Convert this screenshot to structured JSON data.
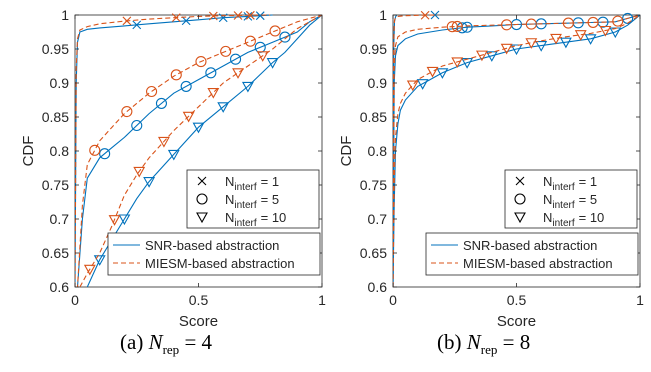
{
  "chart_data": [
    {
      "type": "line",
      "panel": "a",
      "xlabel": "Score",
      "ylabel": "CDF",
      "xlim": [
        0,
        1
      ],
      "ylim": [
        0.6,
        1
      ],
      "xticks": [
        "0",
        "0.5",
        "1"
      ],
      "yticks": [
        "0.6",
        "0.65",
        "0.7",
        "0.75",
        "0.8",
        "0.85",
        "0.9",
        "0.95",
        "1"
      ],
      "grid": false,
      "legend_interf": [
        "= 1",
        "= 5",
        "= 10"
      ],
      "legend_methods": [
        "SNR-based abstraction",
        "MIESM-based abstraction"
      ],
      "series": [
        {
          "method": "snr",
          "n_interf": 1,
          "x": [
            0,
            0.005,
            0.01,
            0.02,
            0.05,
            0.1,
            0.2,
            0.3,
            0.4,
            0.5,
            0.6,
            0.7,
            0.8
          ],
          "y": [
            0.6,
            0.9,
            0.96,
            0.975,
            0.979,
            0.981,
            0.984,
            0.987,
            0.99,
            0.993,
            0.996,
            0.998,
            1
          ]
        },
        {
          "method": "miesm",
          "n_interf": 1,
          "x": [
            0,
            0.005,
            0.01,
            0.02,
            0.05,
            0.1,
            0.2,
            0.3,
            0.4,
            0.5,
            0.6,
            0.7,
            0.79
          ],
          "y": [
            0.6,
            0.92,
            0.965,
            0.978,
            0.983,
            0.987,
            0.991,
            0.994,
            0.996,
            0.998,
            0.999,
            0.9995,
            1
          ]
        },
        {
          "method": "snr",
          "n_interf": 5,
          "x": [
            0,
            0.01,
            0.03,
            0.05,
            0.1,
            0.15,
            0.2,
            0.3,
            0.4,
            0.5,
            0.6,
            0.7,
            0.8,
            0.9,
            0.95,
            1
          ],
          "y": [
            0.6,
            0.6,
            0.7,
            0.76,
            0.79,
            0.805,
            0.82,
            0.855,
            0.885,
            0.905,
            0.925,
            0.945,
            0.96,
            0.975,
            0.99,
            1
          ]
        },
        {
          "method": "miesm",
          "n_interf": 5,
          "x": [
            0,
            0.01,
            0.03,
            0.05,
            0.1,
            0.15,
            0.2,
            0.3,
            0.4,
            0.5,
            0.6,
            0.7,
            0.8,
            0.9,
            0.95,
            1
          ],
          "y": [
            0.6,
            0.6,
            0.72,
            0.78,
            0.815,
            0.835,
            0.855,
            0.885,
            0.91,
            0.93,
            0.945,
            0.96,
            0.975,
            0.99,
            0.995,
            1
          ]
        },
        {
          "method": "snr",
          "n_interf": 10,
          "x": [
            0.05,
            0.1,
            0.15,
            0.2,
            0.25,
            0.3,
            0.4,
            0.5,
            0.6,
            0.7,
            0.8,
            0.85,
            0.9,
            0.95,
            1
          ],
          "y": [
            0.6,
            0.64,
            0.67,
            0.7,
            0.73,
            0.755,
            0.795,
            0.835,
            0.865,
            0.895,
            0.93,
            0.945,
            0.965,
            0.985,
            1
          ]
        },
        {
          "method": "miesm",
          "n_interf": 10,
          "x": [
            0.02,
            0.05,
            0.1,
            0.15,
            0.2,
            0.25,
            0.3,
            0.4,
            0.5,
            0.6,
            0.7,
            0.8,
            0.85,
            0.9,
            0.95,
            1
          ],
          "y": [
            0.6,
            0.62,
            0.65,
            0.69,
            0.735,
            0.765,
            0.79,
            0.83,
            0.865,
            0.9,
            0.925,
            0.95,
            0.965,
            0.98,
            0.99,
            1
          ]
        }
      ],
      "caption": {
        "label": "(a)",
        "value": "= 4"
      }
    },
    {
      "type": "line",
      "panel": "b",
      "xlabel": "Score",
      "ylabel": "CDF",
      "xlim": [
        0,
        1
      ],
      "ylim": [
        0.6,
        1
      ],
      "xticks": [
        "0",
        "0.5",
        "1"
      ],
      "yticks": [
        "0.6",
        "0.65",
        "0.7",
        "0.75",
        "0.8",
        "0.85",
        "0.9",
        "0.95",
        "1"
      ],
      "grid": false,
      "legend_interf": [
        "= 1",
        "= 5",
        "= 10"
      ],
      "legend_methods": [
        "SNR-based abstraction",
        "MIESM-based abstraction"
      ],
      "series": [
        {
          "method": "snr",
          "n_interf": 1,
          "x": [
            0,
            0.003,
            0.006,
            0.01,
            0.015
          ],
          "y": [
            0.6,
            0.95,
            0.99,
            0.997,
            1
          ]
        },
        {
          "method": "miesm",
          "n_interf": 1,
          "x": [
            0,
            0.003,
            0.006,
            0.01,
            0.02,
            0.05,
            0.1,
            0.15,
            0.18
          ],
          "y": [
            0.6,
            0.96,
            0.992,
            0.996,
            0.998,
            0.999,
            0.9995,
            0.9998,
            1
          ]
        },
        {
          "method": "snr",
          "n_interf": 5,
          "x": [
            0,
            0.005,
            0.01,
            0.02,
            0.05,
            0.1,
            0.2,
            0.3,
            0.4,
            0.5,
            0.6,
            0.7,
            0.8,
            0.9,
            1
          ],
          "y": [
            0.6,
            0.9,
            0.94,
            0.955,
            0.965,
            0.972,
            0.978,
            0.982,
            0.984,
            0.986,
            0.987,
            0.988,
            0.989,
            0.99,
            1
          ]
        },
        {
          "method": "miesm",
          "n_interf": 5,
          "x": [
            0,
            0.005,
            0.01,
            0.02,
            0.05,
            0.1,
            0.2,
            0.3,
            0.4,
            0.5,
            0.6,
            0.7,
            0.8,
            0.9,
            1
          ],
          "y": [
            0.6,
            0.92,
            0.955,
            0.968,
            0.975,
            0.979,
            0.982,
            0.984,
            0.985,
            0.986,
            0.987,
            0.988,
            0.989,
            0.99,
            1
          ]
        },
        {
          "method": "snr",
          "n_interf": 10,
          "x": [
            0,
            0.005,
            0.01,
            0.02,
            0.03,
            0.05,
            0.1,
            0.15,
            0.2,
            0.3,
            0.4,
            0.5,
            0.6,
            0.7,
            0.8,
            0.9,
            0.95,
            1
          ],
          "y": [
            0.6,
            0.72,
            0.8,
            0.84,
            0.86,
            0.875,
            0.895,
            0.905,
            0.915,
            0.93,
            0.94,
            0.95,
            0.955,
            0.96,
            0.965,
            0.975,
            0.985,
            1
          ]
        },
        {
          "method": "miesm",
          "n_interf": 10,
          "x": [
            0,
            0.005,
            0.01,
            0.02,
            0.03,
            0.05,
            0.1,
            0.15,
            0.2,
            0.3,
            0.4,
            0.5,
            0.6,
            0.7,
            0.8,
            0.9,
            0.95,
            1
          ],
          "y": [
            0.6,
            0.75,
            0.82,
            0.855,
            0.87,
            0.885,
            0.905,
            0.915,
            0.925,
            0.935,
            0.945,
            0.955,
            0.962,
            0.968,
            0.973,
            0.98,
            0.988,
            1
          ]
        }
      ],
      "caption": {
        "label": "(b)",
        "value": "= 8"
      }
    }
  ],
  "legend_symbol_n": "N",
  "legend_symbol_sub": "interf",
  "caption_symbol_n": "N",
  "caption_symbol_sub": "rep",
  "colors": {
    "snr": "#0072BD",
    "miesm": "#D95319",
    "axis": "#262626"
  }
}
